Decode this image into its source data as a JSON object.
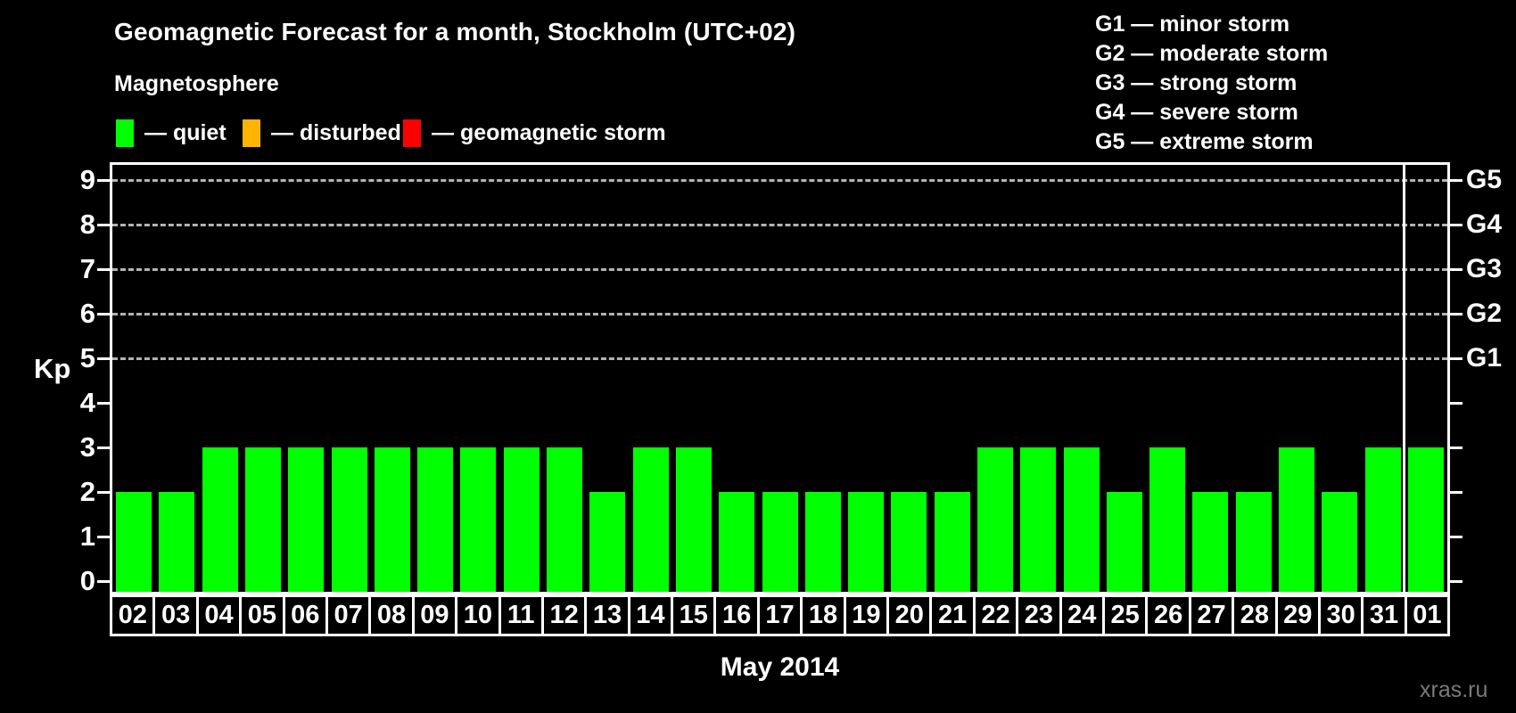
{
  "header": {
    "title": "Geomagnetic Forecast for a month, Stockholm (UTC+02)",
    "subtitle": "Magnetosphere"
  },
  "legend": {
    "items": [
      {
        "name": "quiet",
        "label": "— quiet",
        "color": "#00ff00"
      },
      {
        "name": "disturbed",
        "label": "— disturbed",
        "color": "#ffb400"
      },
      {
        "name": "storm",
        "label": "— geomagnetic storm",
        "color": "#ff0000"
      }
    ]
  },
  "g_legend": {
    "items": [
      "G1 — minor storm",
      "G2 — moderate storm",
      "G3 — strong storm",
      "G4 — severe storm",
      "G5 — extreme storm"
    ]
  },
  "chart_data": {
    "type": "bar",
    "title": "Geomagnetic Forecast for a month, Stockholm (UTC+02)",
    "categories": [
      "02",
      "03",
      "04",
      "05",
      "06",
      "07",
      "08",
      "09",
      "10",
      "11",
      "12",
      "13",
      "14",
      "15",
      "16",
      "17",
      "18",
      "19",
      "20",
      "21",
      "22",
      "23",
      "24",
      "25",
      "26",
      "27",
      "28",
      "29",
      "30",
      "31",
      "01"
    ],
    "values": [
      2,
      2,
      3,
      3,
      3,
      3,
      3,
      3,
      3,
      3,
      3,
      2,
      3,
      3,
      2,
      2,
      2,
      2,
      2,
      2,
      3,
      3,
      3,
      2,
      3,
      2,
      2,
      3,
      2,
      3,
      3
    ],
    "bar_color": "#00ff00",
    "ylabel": "Kp",
    "xlabel": "May 2014",
    "ylim": [
      0,
      9
    ],
    "yticks": [
      0,
      1,
      2,
      3,
      4,
      5,
      6,
      7,
      8,
      9
    ],
    "gridlines_at": [
      5,
      6,
      7,
      8,
      9
    ],
    "right_axis_labels": [
      {
        "kp": 5,
        "label": "G1"
      },
      {
        "kp": 6,
        "label": "G2"
      },
      {
        "kp": 7,
        "label": "G3"
      },
      {
        "kp": 8,
        "label": "G4"
      },
      {
        "kp": 9,
        "label": "G5"
      }
    ],
    "month_separator_before_index": 30,
    "legend_position": "top-left",
    "grid": "dashed-horizontal"
  },
  "footer": {
    "watermark": "xras.ru"
  }
}
